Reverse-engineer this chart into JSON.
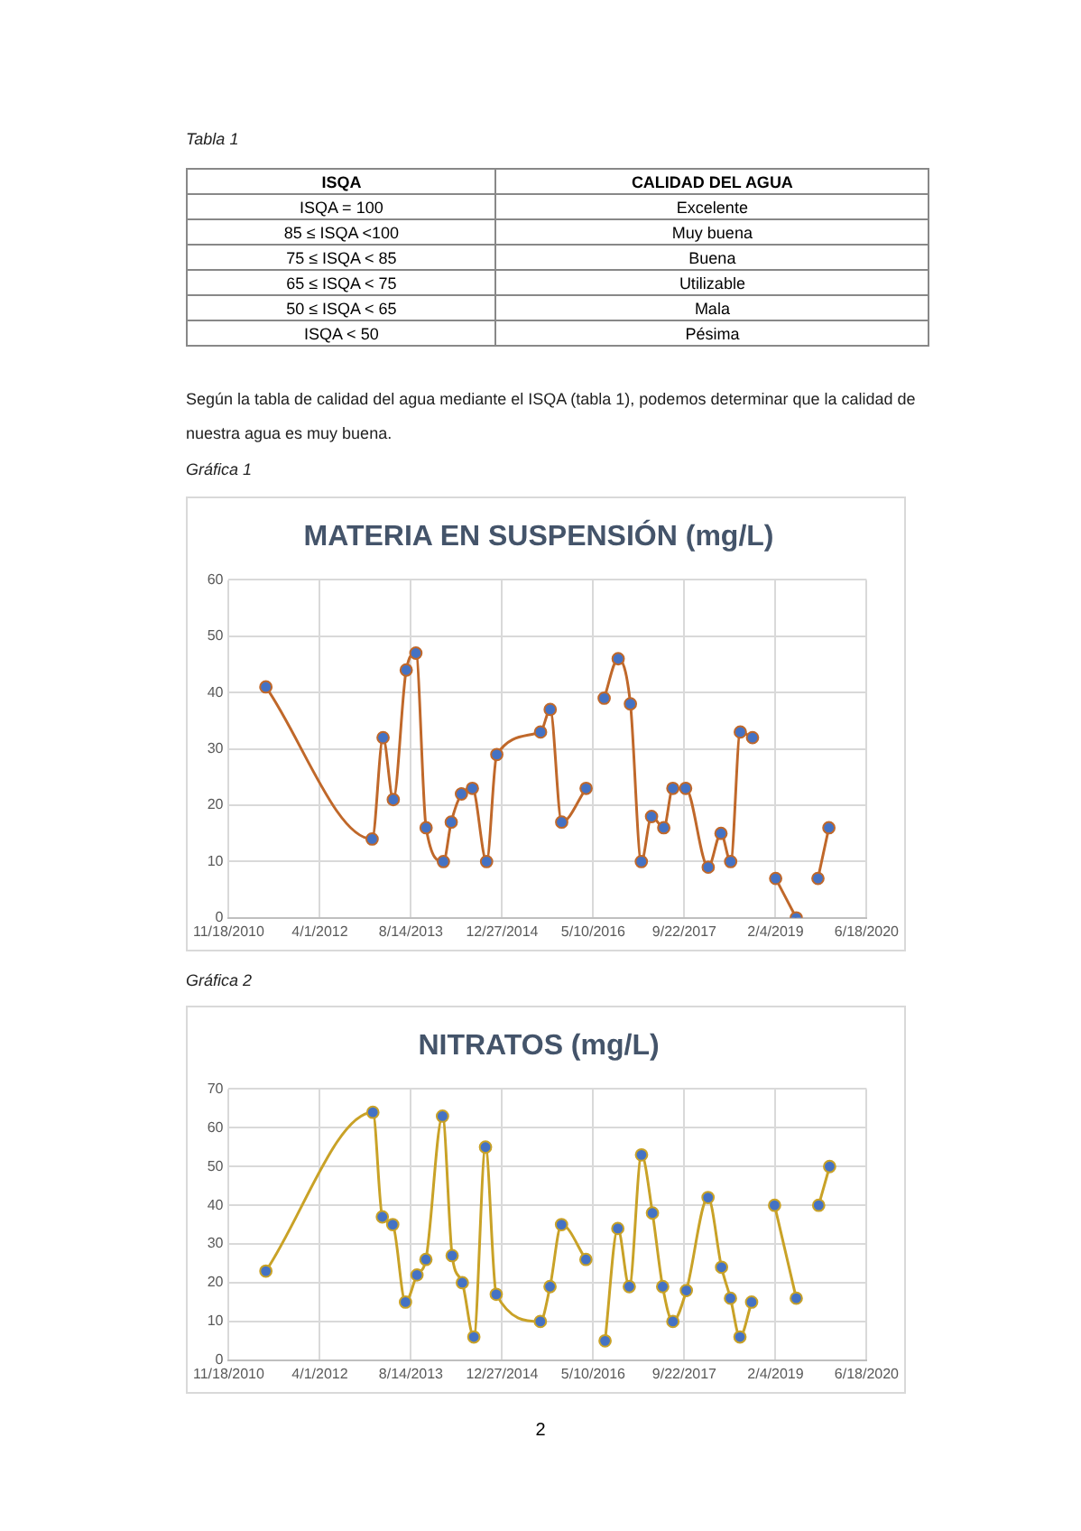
{
  "chart_data": [
    {
      "type": "other",
      "title": "Tabla 1",
      "categories": [
        "ISQA",
        "CALIDAD DEL AGUA"
      ],
      "cells": [
        [
          "ISQA = 100",
          "Excelente"
        ],
        [
          "85 ≤ ISQA <100",
          "Muy buena"
        ],
        [
          "75 ≤ ISQA < 85",
          "Buena"
        ],
        [
          "65 ≤ ISQA < 75",
          "Utilizable"
        ],
        [
          "50 ≤ ISQA < 65",
          "Mala"
        ],
        [
          "ISQA < 50",
          "Pésima"
        ]
      ],
      "annotations": [
        "Según la tabla de calidad del agua mediante el ISQA (tabla 1), podemos determinar que la calidad de nuestra agua es muy buena."
      ]
    },
    {
      "type": "line",
      "title": "MATERIA EN SUSPENSIÓN (mg/L)",
      "annotations": [
        "Gráfica 1"
      ],
      "x": [
        "2011-06-10",
        "2013-01-13",
        "2013-03-14",
        "2013-05-09",
        "2013-07-19",
        "2013-09-10",
        "2013-11-05",
        "2014-02-08",
        "2014-03-23",
        "2014-05-18",
        "2014-07-17",
        "2014-10-03",
        "2014-11-28",
        "2015-07-26",
        "2015-09-17",
        "2015-11-19",
        "2016-04-01",
        "2016-05-20",
        "2016-07-09",
        "2016-09-24",
        "2016-11-30",
        "2017-01-29",
        "2017-03-26",
        "2017-06-01",
        "2017-07-21",
        "2017-09-29",
        "2018-01-31",
        "2018-04-11",
        "2018-06-03",
        "2018-07-26",
        "2018-10-01",
        "2018-12-15",
        "2019-02-05",
        "2019-05-29",
        "2019-07-25",
        "2019-09-25",
        "2019-11-24"
      ],
      "series": [
        {
          "color": "#c0682a",
          "values": [
            41,
            14,
            32,
            21,
            44,
            47,
            16,
            10,
            17,
            22,
            23,
            10,
            29,
            33,
            37,
            17,
            23,
            null,
            39,
            46,
            38,
            10,
            18,
            16,
            23,
            23,
            9,
            15,
            10,
            33,
            32,
            null,
            7,
            0,
            null,
            7,
            16
          ]
        }
      ],
      "xlim": [
        "2010-11-18",
        "2020-06-18"
      ],
      "xticks": [
        {
          "value": "2010-11-18",
          "label": "11/18/2010"
        },
        {
          "value": "2012-04-01",
          "label": "4/1/2012"
        },
        {
          "value": "2013-08-14",
          "label": "8/14/2013"
        },
        {
          "value": "2014-12-27",
          "label": "12/27/2014"
        },
        {
          "value": "2016-05-10",
          "label": "5/10/2016"
        },
        {
          "value": "2017-09-22",
          "label": "9/22/2017"
        },
        {
          "value": "2019-02-04",
          "label": "2/4/2019"
        },
        {
          "value": "2020-06-18",
          "label": "6/18/2020"
        }
      ],
      "ylim": [
        0,
        60
      ],
      "yticks": [
        0,
        10,
        20,
        30,
        40,
        50,
        60
      ],
      "grid": true,
      "marker": "circle",
      "line_style": "solid"
    },
    {
      "type": "line",
      "title": "NITRATOS (mg/L)",
      "annotations": [
        "Gráfica 2",
        "2"
      ],
      "x": [
        "2011-06-10",
        "2013-01-17",
        "2013-03-10",
        "2013-05-06",
        "2013-07-15",
        "2013-09-16",
        "2013-11-04",
        "2014-02-03",
        "2014-03-28",
        "2014-05-23",
        "2014-07-25",
        "2014-09-27",
        "2014-11-25",
        "2015-07-25",
        "2015-09-16",
        "2015-11-18",
        "2016-03-31",
        "2016-05-20",
        "2016-07-14",
        "2016-09-22",
        "2016-11-24",
        "2017-01-30",
        "2017-03-31",
        "2017-05-26",
        "2017-07-21",
        "2017-10-03",
        "2018-01-30",
        "2018-04-14",
        "2018-06-02",
        "2018-07-24",
        "2018-09-26",
        "2018-12-01",
        "2019-01-30",
        "2019-05-29",
        "2019-07-25",
        "2019-09-29",
        "2019-11-28"
      ],
      "series": [
        {
          "color": "#c9a227",
          "values": [
            23,
            64,
            37,
            35,
            15,
            22,
            26,
            63,
            27,
            20,
            6,
            55,
            17,
            10,
            19,
            35,
            26,
            null,
            5,
            34,
            19,
            53,
            38,
            19,
            10,
            18,
            42,
            24,
            16,
            6,
            15,
            null,
            40,
            16,
            null,
            40,
            50
          ]
        }
      ],
      "xlim": [
        "2010-11-18",
        "2020-06-18"
      ],
      "xticks": [
        {
          "value": "2010-11-18",
          "label": "11/18/2010"
        },
        {
          "value": "2012-04-01",
          "label": "4/1/2012"
        },
        {
          "value": "2013-08-14",
          "label": "8/14/2013"
        },
        {
          "value": "2014-12-27",
          "label": "12/27/2014"
        },
        {
          "value": "2016-05-10",
          "label": "5/10/2016"
        },
        {
          "value": "2017-09-22",
          "label": "9/22/2017"
        },
        {
          "value": "2019-02-04",
          "label": "2/4/2019"
        },
        {
          "value": "2020-06-18",
          "label": "6/18/2020"
        }
      ],
      "ylim": [
        0,
        70
      ],
      "yticks": [
        0,
        10,
        20,
        30,
        40,
        50,
        60,
        70
      ],
      "grid": true,
      "marker": "circle",
      "line_style": "solid"
    }
  ]
}
